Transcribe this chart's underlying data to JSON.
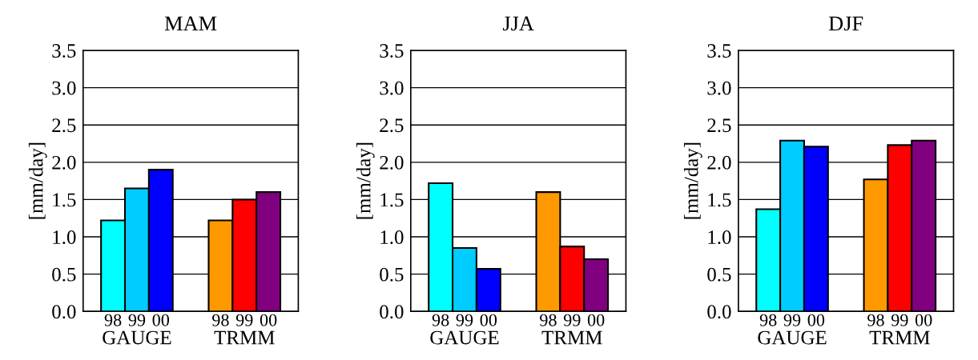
{
  "chart_data": [
    {
      "type": "bar",
      "title": "MAM",
      "ylabel": "[mm/day]",
      "categories": [
        "98",
        "99",
        "00",
        "98",
        "99",
        "00"
      ],
      "values": [
        1.22,
        1.65,
        1.9,
        1.22,
        1.5,
        1.6
      ],
      "colors": [
        "#00ffff",
        "#00ccff",
        "#0000ff",
        "#ff9900",
        "#ff0000",
        "#800080"
      ],
      "ylim": [
        0,
        3.5
      ],
      "yticks": [
        {
          "value": 0,
          "label": "0.0"
        },
        {
          "value": 0.5,
          "label": "0.5"
        },
        {
          "value": 1,
          "label": "1.0"
        },
        {
          "value": 1.5,
          "label": "1.5"
        },
        {
          "value": 2,
          "label": "2.0"
        },
        {
          "value": 2.5,
          "label": "2.5"
        },
        {
          "value": 3,
          "label": "3.0"
        },
        {
          "value": 3.5,
          "label": "3.5"
        }
      ],
      "grid": "y",
      "annotations": [
        "GAUGE",
        "TRMM"
      ]
    },
    {
      "type": "bar",
      "title": "JJA",
      "ylabel": "[mm/day]",
      "categories": [
        "98",
        "99",
        "00",
        "98",
        "99",
        "00"
      ],
      "values": [
        1.72,
        0.85,
        0.57,
        1.6,
        0.87,
        0.7
      ],
      "colors": [
        "#00ffff",
        "#00ccff",
        "#0000ff",
        "#ff9900",
        "#ff0000",
        "#800080"
      ],
      "ylim": [
        0,
        3.5
      ],
      "yticks": [
        {
          "value": 0,
          "label": "0.0"
        },
        {
          "value": 0.5,
          "label": "0.5"
        },
        {
          "value": 1,
          "label": "1.0"
        },
        {
          "value": 1.5,
          "label": "1.5"
        },
        {
          "value": 2,
          "label": "2.0"
        },
        {
          "value": 2.5,
          "label": "2.5"
        },
        {
          "value": 3,
          "label": "3.0"
        },
        {
          "value": 3.5,
          "label": "3.5"
        }
      ],
      "grid": "y",
      "annotations": [
        "GAUGE",
        "TRMM"
      ]
    },
    {
      "type": "bar",
      "title": "DJF",
      "ylabel": "[mm/day]",
      "categories": [
        "98",
        "99",
        "00",
        "98",
        "99",
        "00"
      ],
      "values": [
        1.37,
        2.29,
        2.21,
        1.77,
        2.23,
        2.29
      ],
      "colors": [
        "#00ffff",
        "#00ccff",
        "#0000ff",
        "#ff9900",
        "#ff0000",
        "#800080"
      ],
      "ylim": [
        0,
        3.5
      ],
      "yticks": [
        {
          "value": 0,
          "label": "0.0"
        },
        {
          "value": 0.5,
          "label": "0.5"
        },
        {
          "value": 1,
          "label": "1.0"
        },
        {
          "value": 1.5,
          "label": "1.5"
        },
        {
          "value": 2,
          "label": "2.0"
        },
        {
          "value": 2.5,
          "label": "2.5"
        },
        {
          "value": 3,
          "label": "3.0"
        },
        {
          "value": 3.5,
          "label": "3.5"
        }
      ],
      "grid": "y",
      "annotations": [
        "GAUGE",
        "TRMM"
      ]
    }
  ]
}
